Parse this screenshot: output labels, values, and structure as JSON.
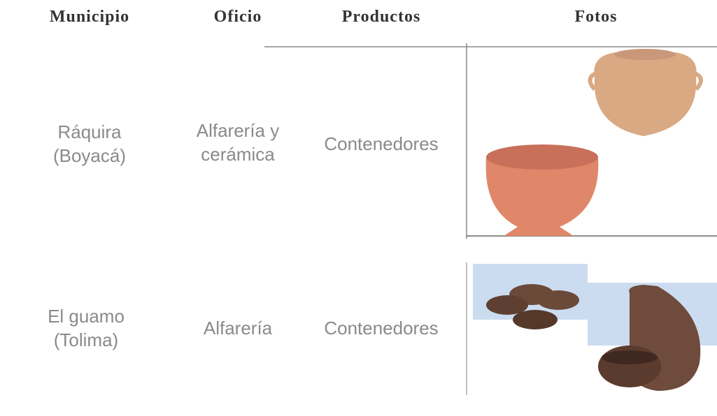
{
  "table": {
    "header": [
      "Municipio",
      "Oficio",
      "Productos",
      "Fotos"
    ],
    "rows": [
      [
        [
          "Ráquira",
          "(Boyacá)"
        ],
        [
          "Alfarería y",
          "cerámica"
        ],
        [
          "Contenedores"
        ]
      ],
      [
        [
          "El guamo",
          "(Tolima)"
        ],
        [
          "Alfarería"
        ],
        [
          "Contenedores"
        ]
      ]
    ]
  }
}
